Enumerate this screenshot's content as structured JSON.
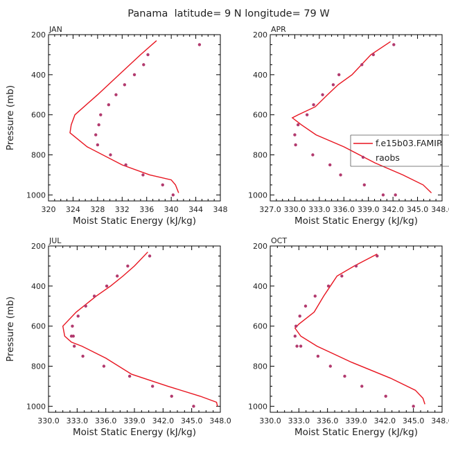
{
  "title": "Panama  latitude= 9 N longitude= 79 W",
  "colors": {
    "model": "#e8141f",
    "obs": "#b23a6e",
    "axis": "#000000",
    "text": "#222222"
  },
  "legend": {
    "model_label": "f.e15b03.FAMIP",
    "obs_label": "raobs",
    "placement": "right (APR panel)"
  },
  "chart_data": [
    {
      "type": "line",
      "panel_label": "JAN",
      "xlabel": "Moist Static Energy (kJ/kg)",
      "ylabel": "Pressure (mb)",
      "xlim": [
        320,
        348
      ],
      "ylim": [
        1030,
        200
      ],
      "xticks": [
        320,
        324,
        328,
        332,
        336,
        340,
        344,
        348
      ],
      "xtick_labels": [
        "320",
        "324",
        "328",
        "332",
        "336",
        "340",
        "344",
        "348"
      ],
      "yticks": [
        200,
        400,
        600,
        800,
        1000
      ],
      "ytick_labels": [
        "200",
        "400",
        "600",
        "800",
        "1000"
      ],
      "series": [
        {
          "name": "f.e15b03.FAMIP",
          "kind": "line",
          "x": [
            337.6,
            335.0,
            331.5,
            328.0,
            324.3,
            323.7,
            323.5,
            326.3,
            332.0,
            336.5,
            340.0,
            340.7,
            341.2
          ],
          "y": [
            230,
            300,
            400,
            500,
            600,
            650,
            690,
            760,
            850,
            900,
            925,
            950,
            990
          ]
        },
        {
          "name": "raobs",
          "kind": "scatter",
          "x": [
            344.6,
            336.2,
            335.5,
            334.0,
            332.4,
            331.0,
            329.8,
            328.5,
            328.2,
            327.7,
            328.0,
            330.1,
            332.6,
            335.4,
            338.6,
            340.3
          ],
          "y": [
            250,
            300,
            350,
            400,
            450,
            500,
            550,
            600,
            650,
            700,
            750,
            800,
            850,
            900,
            950,
            1000
          ]
        }
      ]
    },
    {
      "type": "line",
      "panel_label": "APR",
      "xlabel": "Moist Static Energy (kJ/kg)",
      "ylabel": "",
      "xlim": [
        327.0,
        348.0
      ],
      "ylim": [
        1030,
        200
      ],
      "xticks": [
        327.0,
        330.0,
        333.0,
        336.0,
        339.0,
        342.0,
        345.0,
        348.0
      ],
      "xtick_labels": [
        "327.0",
        "330.0",
        "333.0",
        "336.0",
        "339.0",
        "342.0",
        "345.0",
        "348.0"
      ],
      "yticks": [
        200,
        400,
        600,
        800,
        1000
      ],
      "ytick_labels": [
        "200",
        "400",
        "600",
        "800",
        "1000"
      ],
      "series": [
        {
          "name": "f.e15b03.FAMIP",
          "kind": "line",
          "x": [
            341.7,
            339.3,
            337.0,
            335.3,
            334.0,
            332.5,
            330.4,
            329.7,
            330.8,
            332.6,
            336.0,
            339.8,
            343.2,
            345.7,
            346.7
          ],
          "y": [
            235,
            300,
            400,
            450,
            500,
            560,
            600,
            615,
            650,
            700,
            760,
            840,
            900,
            950,
            990
          ]
        },
        {
          "name": "raobs",
          "kind": "scatter",
          "x": [
            342.1,
            339.6,
            338.2,
            335.4,
            334.7,
            333.4,
            332.3,
            331.5,
            330.4,
            330.0,
            330.1,
            332.2,
            334.3,
            335.6,
            338.5,
            340.8,
            342.3
          ],
          "y": [
            250,
            300,
            350,
            400,
            450,
            500,
            550,
            600,
            650,
            700,
            750,
            800,
            850,
            900,
            950,
            1000,
            1000
          ]
        }
      ]
    },
    {
      "type": "line",
      "panel_label": "JUL",
      "xlabel": "Moist Static Energy (kJ/kg)",
      "ylabel": "Pressure (mb)",
      "xlim": [
        330.0,
        348.0
      ],
      "ylim": [
        1030,
        200
      ],
      "xticks": [
        330.0,
        333.0,
        336.0,
        339.0,
        342.0,
        345.0,
        348.0
      ],
      "xtick_labels": [
        "330.0",
        "333.0",
        "336.0",
        "339.0",
        "342.0",
        "345.0",
        "348.0"
      ],
      "yticks": [
        200,
        400,
        600,
        800,
        1000
      ],
      "ytick_labels": [
        "200",
        "400",
        "600",
        "800",
        "1000"
      ],
      "series": [
        {
          "name": "f.e15b03.FAMIP",
          "kind": "line",
          "x": [
            340.4,
            339.0,
            337.8,
            336.5,
            335.0,
            332.9,
            331.5,
            331.7,
            332.4,
            333.5,
            336.0,
            338.7,
            342.5,
            345.9,
            347.6,
            347.7
          ],
          "y": [
            230,
            300,
            350,
            400,
            450,
            530,
            600,
            650,
            680,
            700,
            760,
            840,
            900,
            950,
            980,
            1000
          ]
        },
        {
          "name": "raobs",
          "kind": "scatter",
          "x": [
            340.6,
            338.3,
            337.2,
            336.1,
            334.8,
            333.9,
            333.1,
            332.5,
            332.6,
            332.4,
            332.7,
            333.6,
            335.8,
            338.5,
            340.9,
            342.9,
            345.2
          ],
          "y": [
            250,
            300,
            350,
            400,
            450,
            500,
            550,
            600,
            650,
            650,
            700,
            750,
            800,
            850,
            900,
            950,
            1000
          ]
        }
      ]
    },
    {
      "type": "line",
      "panel_label": "OCT",
      "xlabel": "Moist Static Energy (kJ/kg)",
      "ylabel": "",
      "xlim": [
        330.0,
        348.0
      ],
      "ylim": [
        1030,
        200
      ],
      "xticks": [
        330.0,
        333.0,
        336.0,
        339.0,
        342.0,
        345.0,
        348.0
      ],
      "xtick_labels": [
        "330.0",
        "333.0",
        "336.0",
        "339.0",
        "342.0",
        "345.0",
        "348.0"
      ],
      "yticks": [
        200,
        400,
        600,
        800,
        1000
      ],
      "ytick_labels": [
        "200",
        "400",
        "600",
        "800",
        "1000"
      ],
      "series": [
        {
          "name": "f.e15b03.FAMIP",
          "kind": "line",
          "x": [
            341.2,
            338.8,
            337.0,
            336.3,
            335.6,
            334.6,
            333.0,
            332.6,
            333.2,
            334.9,
            338.5,
            342.6,
            345.2,
            346.0,
            346.2
          ],
          "y": [
            240,
            300,
            350,
            400,
            450,
            530,
            590,
            610,
            650,
            700,
            780,
            860,
            920,
            960,
            990
          ]
        },
        {
          "name": "raobs",
          "kind": "scatter",
          "x": [
            341.2,
            339.0,
            337.5,
            336.1,
            334.7,
            333.7,
            333.1,
            332.7,
            332.6,
            332.8,
            333.2,
            335.0,
            336.3,
            337.8,
            339.6,
            342.1,
            345.0
          ],
          "y": [
            250,
            300,
            350,
            400,
            450,
            500,
            550,
            600,
            650,
            700,
            700,
            750,
            800,
            850,
            900,
            950,
            1000
          ]
        }
      ]
    }
  ]
}
